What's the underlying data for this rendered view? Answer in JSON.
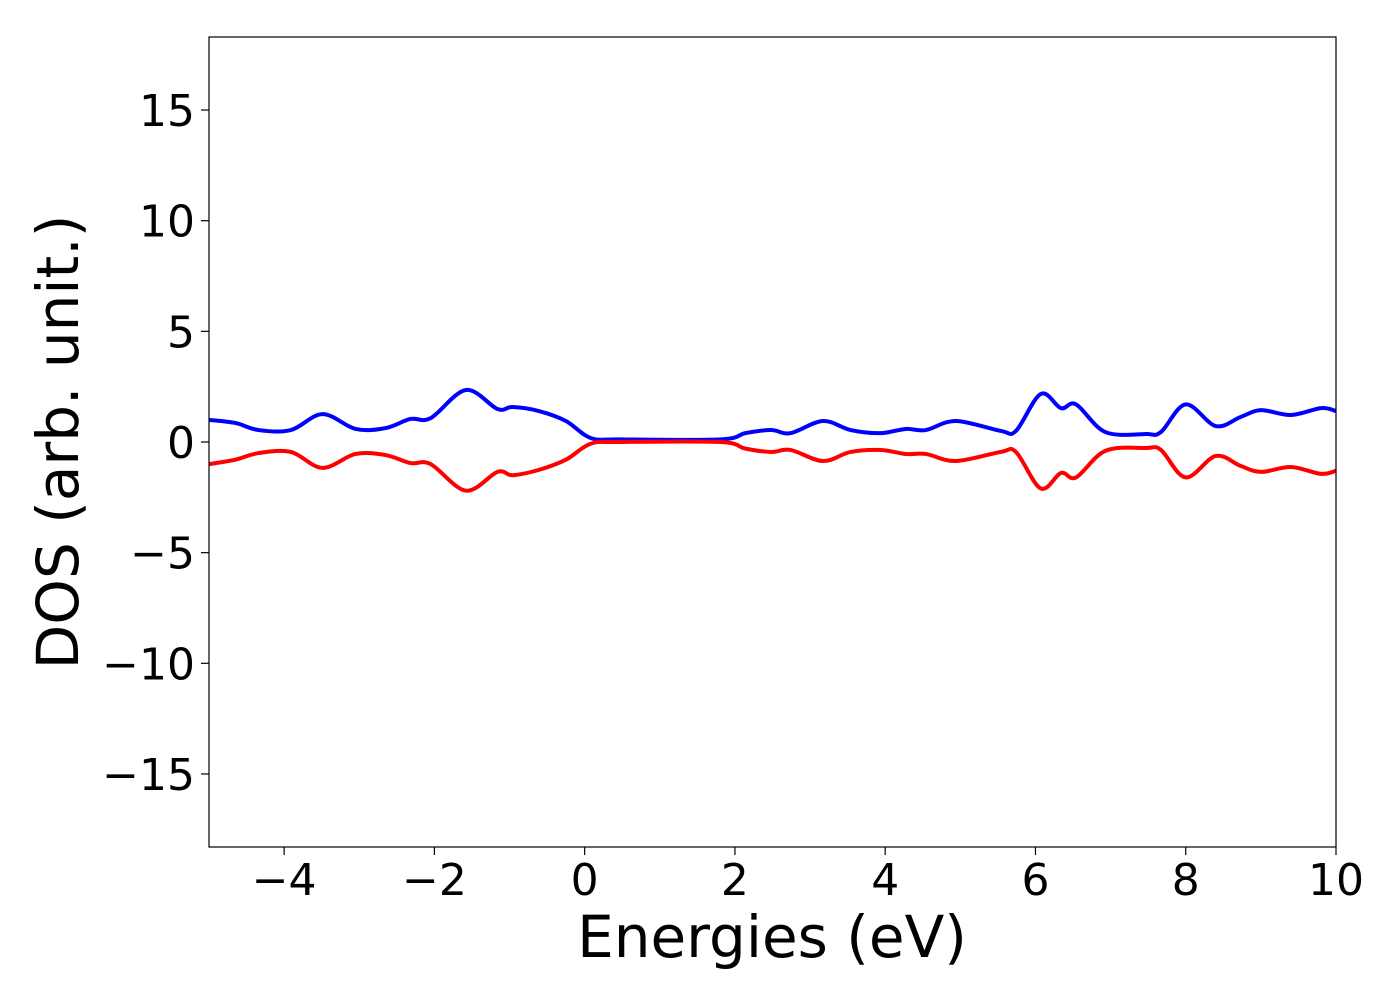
{
  "chart_data": {
    "type": "line",
    "title": "",
    "xlabel": "Energies (eV)",
    "ylabel": "DOS (arb. unit.)",
    "xlim": [
      -5,
      10
    ],
    "ylim": [
      -18.3,
      18.3
    ],
    "grid": false,
    "xticks": [
      -4,
      -2,
      0,
      2,
      4,
      6,
      8,
      10
    ],
    "xtick_labels": [
      "−4",
      "−2",
      "0",
      "2",
      "4",
      "6",
      "8",
      "10"
    ],
    "yticks": [
      -15,
      -10,
      -5,
      0,
      5,
      10,
      15
    ],
    "ytick_labels": [
      "−15",
      "−10",
      "−5",
      "0",
      "5",
      "10",
      "15"
    ],
    "x": [
      -5,
      -4.65,
      -4.34,
      -3.91,
      -3.49,
      -3.05,
      -2.65,
      -2.32,
      -2.05,
      -1.58,
      -1.16,
      -0.96,
      -0.61,
      -0.25,
      0.08,
      0.48,
      1.81,
      2.14,
      2.48,
      2.74,
      3.17,
      3.54,
      3.94,
      4.27,
      4.54,
      4.94,
      5.54,
      5.74,
      6.07,
      6.34,
      6.54,
      6.93,
      7.47,
      7.67,
      8.0,
      8.4,
      8.73,
      9.0,
      9.4,
      9.8,
      10
    ],
    "series": [
      {
        "color": "#0000ff",
        "values": [
          1.0,
          0.86,
          0.54,
          0.54,
          1.26,
          0.59,
          0.63,
          1.04,
          1.08,
          2.35,
          1.49,
          1.58,
          1.4,
          0.95,
          0.18,
          0.12,
          0.12,
          0.4,
          0.54,
          0.4,
          0.95,
          0.54,
          0.4,
          0.59,
          0.54,
          0.95,
          0.5,
          0.5,
          2.17,
          1.53,
          1.7,
          0.45,
          0.36,
          0.45,
          1.7,
          0.72,
          1.13,
          1.44,
          1.22,
          1.53,
          1.4
        ]
      },
      {
        "color": "#ff0000",
        "values": [
          -1.0,
          -0.8,
          -0.5,
          -0.45,
          -1.17,
          -0.54,
          -0.59,
          -0.95,
          -1.0,
          -2.2,
          -1.35,
          -1.5,
          -1.26,
          -0.8,
          -0.08,
          0,
          0,
          -0.3,
          -0.45,
          -0.36,
          -0.86,
          -0.45,
          -0.36,
          -0.54,
          -0.54,
          -0.86,
          -0.45,
          -0.45,
          -2.1,
          -1.4,
          -1.6,
          -0.4,
          -0.27,
          -0.36,
          -1.6,
          -0.63,
          -1.08,
          -1.35,
          -1.13,
          -1.44,
          -1.3
        ]
      }
    ]
  }
}
